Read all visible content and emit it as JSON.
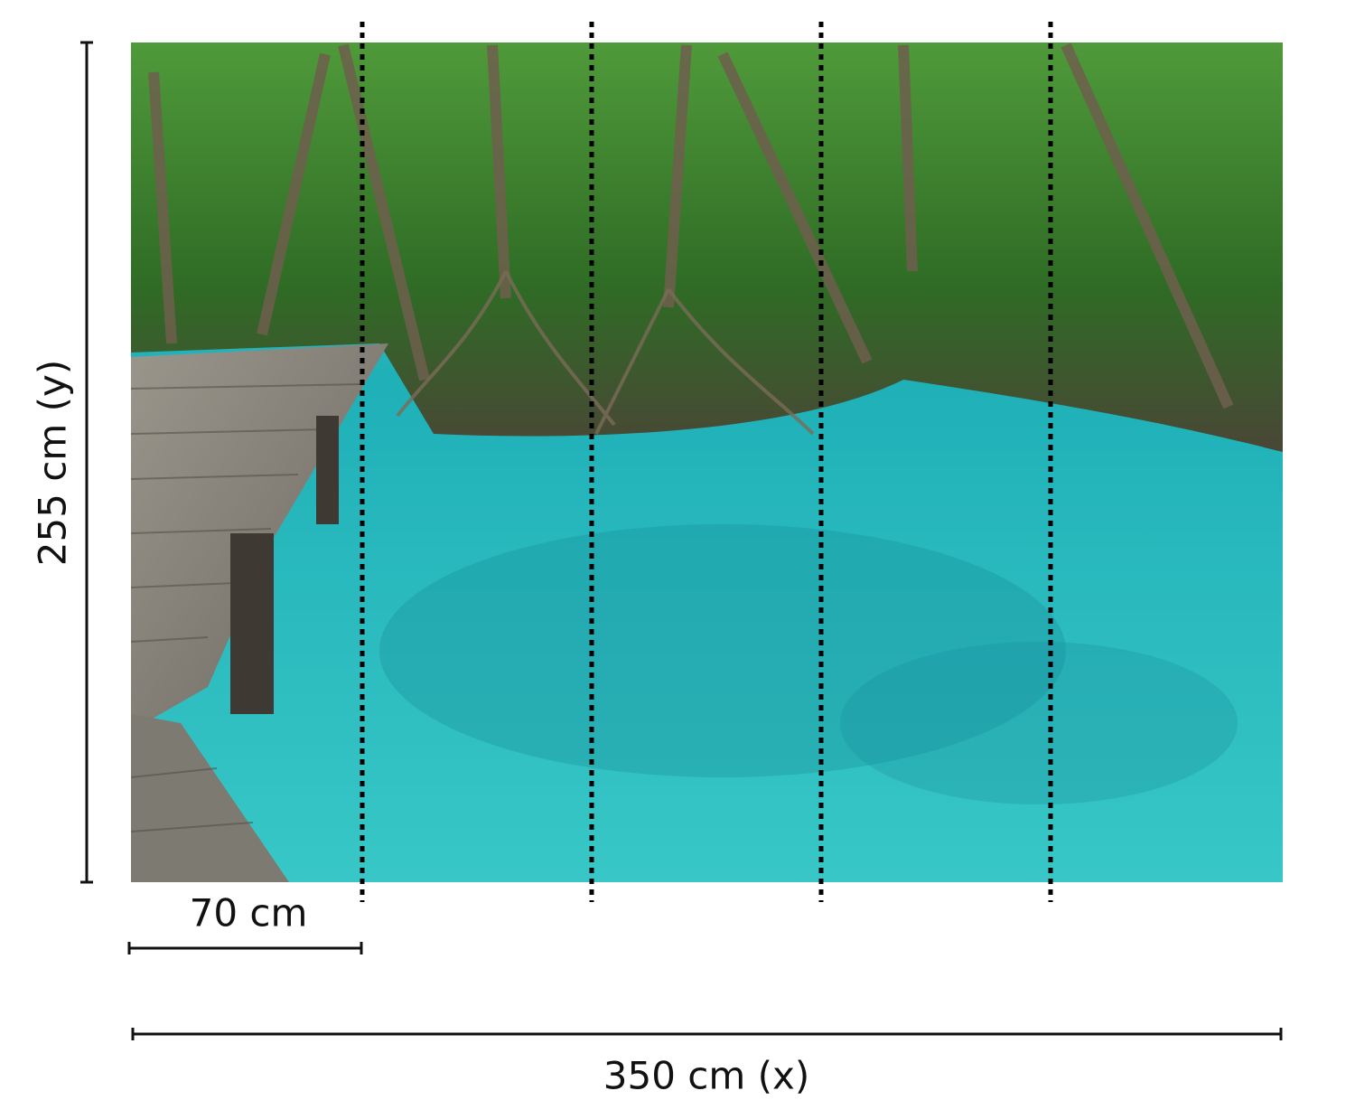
{
  "dimensions": {
    "height_label": "255 cm (y)",
    "panel_width_label": "70 cm",
    "total_width_label": "350 cm (x)"
  },
  "mural": {
    "subject": "mangrove-lagoon-boardwalk",
    "panel_count": 5,
    "colors": {
      "water": "#2cc3c8",
      "foliage": "#3f8a2e",
      "boardwalk": "#8a8780",
      "divider": "#000000"
    }
  }
}
